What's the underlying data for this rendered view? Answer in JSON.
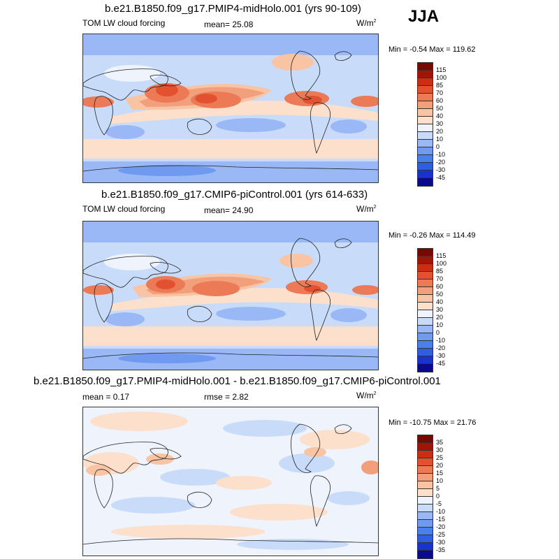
{
  "season": "JJA",
  "palette": {
    "abs": [
      "#0a0a8c",
      "#1a33cc",
      "#2f5fe0",
      "#4a80ea",
      "#6f9af0",
      "#9ab8f5",
      "#c8dcfa",
      "#eef3fc",
      "#fde0cc",
      "#f8c4a4",
      "#f2a07c",
      "#ec7a56",
      "#e25230",
      "#cc2e14",
      "#a01505",
      "#760a02"
    ],
    "diff": [
      "#0a0a8c",
      "#1a33cc",
      "#2f5fe0",
      "#4a80ea",
      "#6f9af0",
      "#9ab8f5",
      "#c8dcfa",
      "#eef3fc",
      "#fde0cc",
      "#f8c4a4",
      "#f2a07c",
      "#ec7a56",
      "#e25230",
      "#cc2e14",
      "#a01505",
      "#760a02"
    ]
  },
  "panels": [
    {
      "title": "b.e21.B1850.f09_g17.PMIP4-midHolo.001 (yrs 90-109)",
      "left_label": "TOM LW cloud forcing",
      "center_label": "mean=  25.08",
      "units": "W/m",
      "units_sup": "2",
      "minmax": "Min =  -0.54 Max = 119.62",
      "levels": [
        "115",
        "100",
        "85",
        "70",
        "60",
        "50",
        "40",
        "30",
        "20",
        "10",
        "0",
        "-10",
        "-20",
        "-30",
        "-45"
      ]
    },
    {
      "title": "b.e21.B1850.f09_g17.CMIP6-piControl.001 (yrs 614-633)",
      "left_label": "TOM LW cloud forcing",
      "center_label": "mean=  24.90",
      "units": "W/m",
      "units_sup": "2",
      "minmax": "Min =  -0.26 Max = 114.49",
      "levels": [
        "115",
        "100",
        "85",
        "70",
        "60",
        "50",
        "40",
        "30",
        "20",
        "10",
        "0",
        "-10",
        "-20",
        "-30",
        "-45"
      ]
    },
    {
      "title": "b.e21.B1850.f09_g17.PMIP4-midHolo.001 - b.e21.B1850.f09_g17.CMIP6-piControl.001",
      "left_label": "mean =   0.17",
      "center_label": "rmse =   2.82",
      "units": "W/m",
      "units_sup": "2",
      "minmax": "Min = -10.75 Max =  21.76",
      "levels": [
        "35",
        "30",
        "25",
        "20",
        "15",
        "10",
        "5",
        "0",
        "-5",
        "-10",
        "-15",
        "-20",
        "-25",
        "-30",
        "-35"
      ]
    }
  ]
}
